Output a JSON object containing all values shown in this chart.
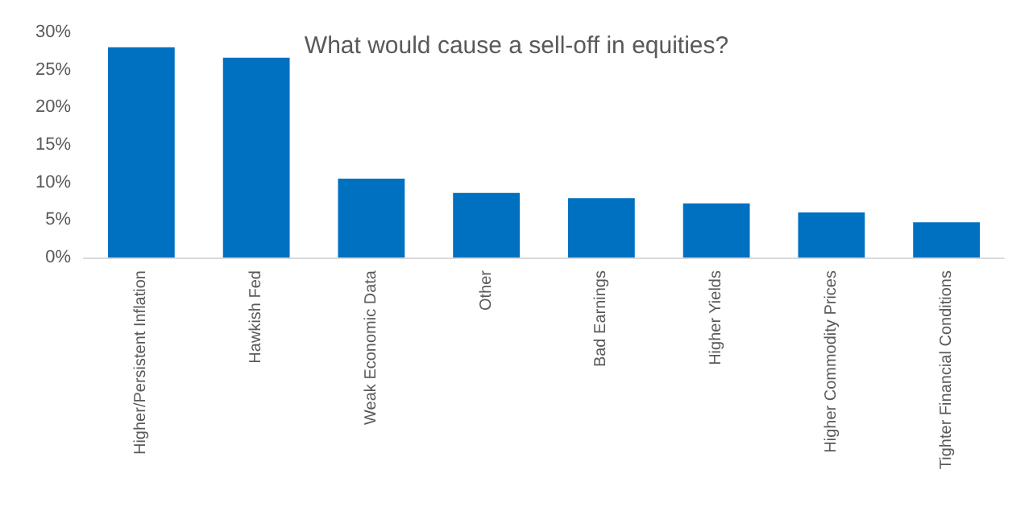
{
  "chart_data": {
    "type": "bar",
    "title": "What would cause a sell-off in equities?",
    "categories": [
      "Higher/Persistent Inflation",
      "Hawkish Fed",
      "Weak Economic Data",
      "Other",
      "Bad Earnings",
      "Higher Yields",
      "Higher Commodity Prices",
      "Tighter Financial Conditions"
    ],
    "values": [
      28.0,
      26.6,
      10.5,
      8.6,
      7.9,
      7.2,
      6.0,
      4.7
    ],
    "color": "#0070c0",
    "ylim": [
      0,
      30
    ],
    "yticks": [
      {
        "value": 0,
        "label": "0%"
      },
      {
        "value": 5,
        "label": "5%"
      },
      {
        "value": 10,
        "label": "10%"
      },
      {
        "value": 15,
        "label": "15%"
      },
      {
        "value": 20,
        "label": "20%"
      },
      {
        "value": 25,
        "label": "25%"
      },
      {
        "value": 30,
        "label": "30%"
      }
    ],
    "grid": false
  }
}
